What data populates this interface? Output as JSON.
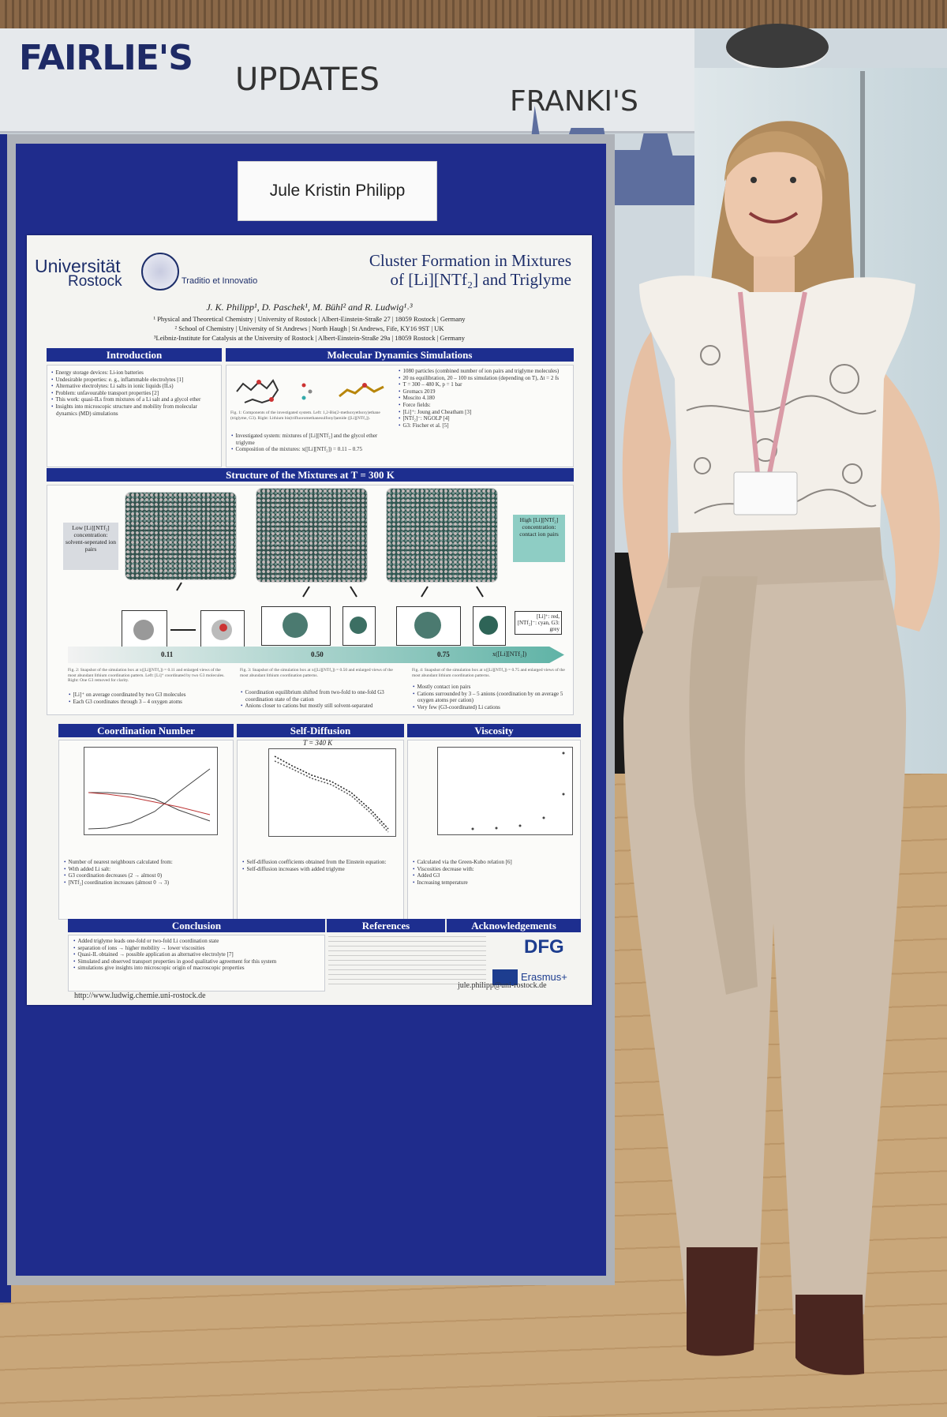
{
  "signs": [
    "FAIRLIE'S",
    "UPDATES",
    "FRANKI'S"
  ],
  "name_card": "Jule Kristin Philipp",
  "poster": {
    "logo": {
      "name": [
        "Universität",
        "Rostock"
      ],
      "motto": "Traditio et Innovatio"
    },
    "title": [
      "Cluster Formation in Mixtures",
      "of [Li][NTf₂] and Triglyme"
    ],
    "authors": "J. K. Philipp¹, D. Paschek¹, M. Bühl² and R. Ludwig¹˒³",
    "affiliations": [
      "¹ Physical and Theoretical Chemistry | University of Rostock | Albert-Einstein-Straße 27 | 18059 Rostock | Germany",
      "² School of Chemistry | University of St Andrews | North Haugh | St Andrews, Fife, KY16 9ST | UK",
      "³Leibniz-Institute for Catalysis at the University of Rostock | Albert-Einstein-Straße 29a | 18059 Rostock | Germany"
    ],
    "introduction": {
      "heading": "Introduction",
      "bullets": [
        "Energy storage devices: Li-ion batteries",
        "Undesirable properties: e. g., inflammable electrolytes [1]",
        "Alternative electrolytes: Li salts in ionic liquids (ILs)",
        "Problem: unfavourable transport properties [2]",
        "This work: quasi-ILs from mixtures of a Li salt and a glycol ether",
        "Insights into microscopic structure and mobility from molecular dynamics (MD) simulations"
      ]
    },
    "md": {
      "heading": "Molecular Dynamics Simulations",
      "caption": "Fig. 1: Components of the investigated system. Left: 1,2-Bis(2-methoxyethoxy)ethane (triglyme, G3). Right: Lithium bis(trifluoromethanesulfonyl)amide ([Li][NTf₂]).",
      "bullets_left": [
        "Investigated system: mixtures of [Li][NTf₂] and the glycol ether triglyme",
        "Composition of the mixtures: x([Li][NTf₂]) = 0.11 – 0.75"
      ],
      "bullets_right": [
        "1080 particles (combined number of ion pairs and triglyme molecules)",
        "20 ns equilibration, 20 – 100 ns simulation (depending on T), Δt = 2 fs",
        "T = 300 – 480 K, p = 1 bar",
        "Gromacs 2019",
        "Moscito 4.180",
        "Force fields:",
        "[Li]⁺: Joung and Cheatham [3]",
        "[NTf₂]⁻: NGOLP [4]",
        "G3: Fischer et al. [5]"
      ]
    },
    "structure": {
      "heading": "Structure of the Mixtures at T = 300 K",
      "low_label": "Low [Li][NTf₂] concentration: solvent-seperated ion pairs",
      "high_label": "High [Li][NTf₂] concentration: contact ion pairs",
      "legend": "[Li]⁺: red, [NTf₂]⁻: cyan, G3: grey",
      "scale_labels": [
        "0.11",
        "0.50",
        "0.75",
        "x([Li][NTf₂])"
      ],
      "captions": [
        "Fig. 2: Snapshot of the simulation box at x([Li][NTf₂]) = 0.11 and enlarged views of the most abundant lithium coordination pattern. Left: [Li]⁺ coordinated by two G3 molecules. Right: One G3 removed for clarity.",
        "Fig. 3: Snapshot of the simulation box at x([Li][NTf₂]) = 0.50 and enlarged views of the most abundant lithium coordination patterns.",
        "Fig. 4: Snapshot of the simulation box at x([Li][NTf₂]) = 0.75 and enlarged views of the most abundant lithium coordination patterns."
      ],
      "bullets": [
        [
          "[Li]⁺ on average coordinated by two G3 molecules",
          "Each G3 coordinates through 3 – 4 oxygen atoms"
        ],
        [
          "Coordination equilibrium shifted from two-fold to one-fold G3 coordination state of the cation",
          "Anions closer to cations but mostly still solvent-separated"
        ],
        [
          "Mostly contact ion pairs",
          "Cations surrounded by 3 – 5 anions (coordination by on average 5 oxygen atoms per cation)",
          "Very few (G3-coordinated) Li cations"
        ]
      ]
    },
    "results": [
      {
        "heading": "Coordination Number",
        "bullets": [
          "Number of nearest neighbours calculated from:",
          "With added Li salt:",
          "G3 coordination decreases (2 → almost 0)",
          "[NTf₂] coordination increases (almost 0 → 3)"
        ]
      },
      {
        "heading": "Self-Diffusion",
        "plot_title": "T = 340 K",
        "bullets": [
          "Self-diffusion coefficients obtained from the Einstein equation:",
          "Self-diffusion increases with added triglyme"
        ]
      },
      {
        "heading": "Viscosity",
        "bullets": [
          "Calculated via the Green-Kubo relation [6]",
          "Viscosities decrease with:",
          "Added G3",
          "Increasing temperature"
        ]
      }
    ],
    "conclusion": {
      "heading": "Conclusion",
      "bullets": [
        "Added triglyme leads one-fold or two-fold Li coordination state",
        "separation of ions → higher mobility → lower viscosities",
        "Quasi-IL obtained → possible application as alternative electrolyte [7]",
        "Simulated and observed transport properties in good qualitative agreement for this system",
        "simulations give insights into microscopic origin of macroscopic properties"
      ]
    },
    "references": {
      "heading": "References"
    },
    "acknowledgements": {
      "heading": "Acknowledgements",
      "logos": [
        "DFG",
        "Erasmus+"
      ]
    },
    "url": "http://www.ludwig.chemie.uni-rostock.de",
    "email": "jule.philipp@uni-rostock.de"
  }
}
